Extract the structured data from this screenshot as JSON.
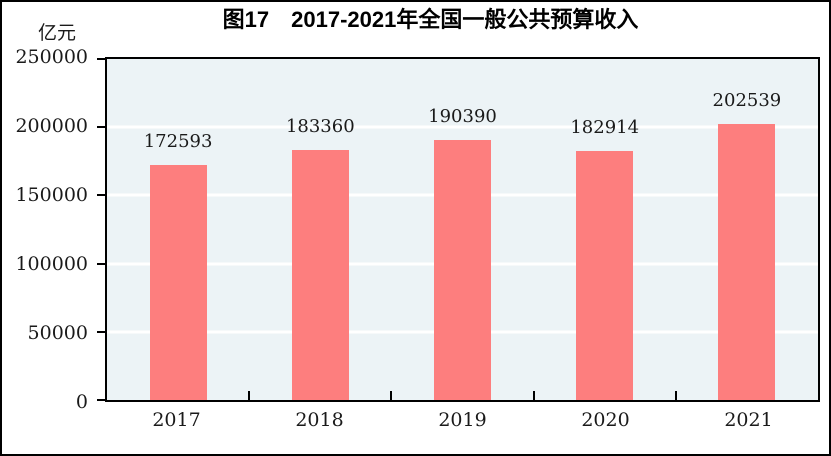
{
  "figure": {
    "title": "图17　2017-2021年全国一般公共预算收入",
    "unit_label": "亿元"
  },
  "chart_data": {
    "type": "bar",
    "title": "图17　2017-2021年全国一般公共预算收入",
    "ylabel": "亿元",
    "xlabel": "",
    "categories": [
      "2017",
      "2018",
      "2019",
      "2020",
      "2021"
    ],
    "values": [
      172593,
      183360,
      190390,
      182914,
      202539
    ],
    "ylim": [
      0,
      250000
    ],
    "yticks": [
      0,
      50000,
      100000,
      150000,
      200000,
      250000
    ],
    "grid": true,
    "gridline_axis": "y",
    "legend": "none",
    "colors": {
      "bar": "#fd7e7e",
      "plot_background": "#ecf3f6",
      "gridline": "#ffffff",
      "axis": "#000000",
      "text": "#1a1a1a"
    }
  }
}
